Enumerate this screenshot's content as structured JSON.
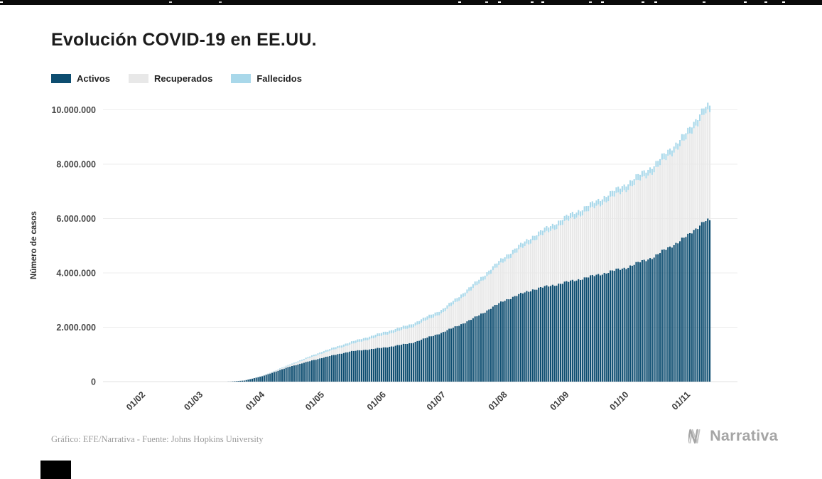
{
  "legend": {
    "items": [
      {
        "label": "Activos",
        "color": "#0d4d70"
      },
      {
        "label": "Recuperados",
        "color": "#e8e8e8"
      },
      {
        "label": "Fallecidos",
        "color": "#a9d8ea"
      }
    ]
  },
  "footer": {
    "caption": "Gráfico: EFE/Narrativa - Fuente: Johns Hopkins University",
    "logo_text": "Narrativa"
  },
  "chart_data": {
    "type": "area",
    "stacked": true,
    "title": "Evolución COVID-19 en EE.UU.",
    "xlabel": "",
    "ylabel": "Número de casos",
    "ylim": [
      0,
      10500000
    ],
    "grid": "horizontal",
    "legend_position": "top-left",
    "yticks": [
      0,
      2000000,
      4000000,
      6000000,
      8000000,
      10000000
    ],
    "ytick_labels": [
      "0",
      "2.000.000",
      "4.000.000",
      "6.000.000",
      "8.000.000",
      "10.000.000"
    ],
    "xtick_labels": [
      "01/02",
      "01/03",
      "01/04",
      "01/05",
      "01/06",
      "01/07",
      "01/08",
      "01/09",
      "01/10",
      "01/11"
    ],
    "xticks_days_since_feb1": [
      0,
      29,
      60,
      90,
      121,
      151,
      182,
      213,
      243,
      274
    ],
    "x_days_since_feb1": [
      0,
      29,
      44,
      51,
      60,
      74,
      90,
      104,
      121,
      135,
      151,
      165,
      182,
      196,
      213,
      227,
      243,
      257,
      274,
      282
    ],
    "series": [
      {
        "name": "Activos",
        "color": "#0d4d70",
        "values": [
          0,
          100,
          3500,
          40000,
          200000,
          556000,
          875000,
          1110000,
          1250000,
          1420000,
          1820000,
          2280000,
          3000000,
          3390000,
          3660000,
          3900000,
          4200000,
          4600000,
          5370000,
          5910000
        ]
      },
      {
        "name": "Recuperados",
        "color": "#e8e8e8",
        "values": [
          0,
          5,
          150,
          1000,
          8500,
          52000,
          164000,
          250000,
          458000,
          576000,
          729000,
          1080000,
          1460000,
          1800000,
          2230000,
          2500000,
          2870000,
          3160000,
          3610000,
          3960000
        ]
      },
      {
        "name": "Fallecidos",
        "color": "#a9d8ea",
        "values": [
          0,
          1,
          70,
          600,
          5000,
          28000,
          65000,
          87000,
          105000,
          116000,
          128000,
          138000,
          154000,
          169000,
          184000,
          196000,
          208000,
          217000,
          231000,
          238000
        ]
      }
    ]
  }
}
